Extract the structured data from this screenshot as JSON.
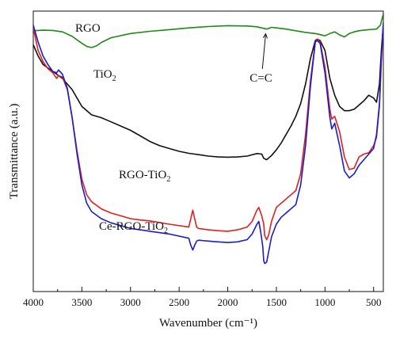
{
  "chart_data": {
    "type": "line",
    "title": "",
    "xlabel": "Wavenumber (cm⁻¹)",
    "ylabel": "Transmittance (a.u.)",
    "xlim": [
      4000,
      400
    ],
    "x_reversed": true,
    "x_ticks": [
      4000,
      3500,
      3000,
      2500,
      2000,
      1500,
      1000,
      500
    ],
    "y_ticks_shown": false,
    "y_range_note": "arbitrary units",
    "ylim": [
      0,
      100
    ],
    "grid": false,
    "legend": "inline labels",
    "series": [
      {
        "name": "RGO",
        "label_main": "RGO",
        "label_sub": "",
        "color": "#1b8a17",
        "x": [
          4000,
          3900,
          3800,
          3700,
          3600,
          3500,
          3450,
          3400,
          3350,
          3300,
          3200,
          3000,
          2800,
          2600,
          2400,
          2200,
          2000,
          1800,
          1700,
          1600,
          1550,
          1500,
          1400,
          1300,
          1200,
          1100,
          1050,
          1000,
          950,
          900,
          850,
          800,
          750,
          700,
          650,
          600,
          550,
          500,
          470,
          430,
          400
        ],
        "y": [
          93.0,
          93.2,
          93.1,
          92.6,
          91.0,
          88.5,
          87.4,
          87.0,
          87.6,
          88.8,
          90.5,
          92.0,
          92.8,
          93.4,
          94.0,
          94.5,
          94.8,
          94.7,
          94.4,
          93.6,
          94.2,
          94.0,
          93.6,
          93.0,
          92.4,
          92.0,
          91.6,
          91.2,
          92.0,
          92.6,
          91.5,
          90.8,
          92.0,
          92.6,
          93.0,
          93.2,
          93.4,
          93.5,
          93.6,
          95.0,
          99.0
        ]
      },
      {
        "name": "TiO2",
        "label_main": "TiO",
        "label_sub": "2",
        "color": "#111111",
        "x": [
          4000,
          3950,
          3900,
          3800,
          3700,
          3600,
          3500,
          3400,
          3300,
          3200,
          3100,
          3000,
          2900,
          2800,
          2700,
          2600,
          2500,
          2400,
          2300,
          2200,
          2100,
          2000,
          1900,
          1800,
          1700,
          1650,
          1630,
          1600,
          1550,
          1500,
          1450,
          1400,
          1350,
          1300,
          1250,
          1200,
          1150,
          1100,
          1080,
          1050,
          1000,
          950,
          900,
          850,
          800,
          750,
          700,
          650,
          600,
          550,
          500,
          470,
          440,
          420,
          400
        ],
        "y": [
          88.0,
          84.0,
          81.0,
          78.5,
          76.0,
          72.0,
          66.0,
          63.0,
          62.0,
          60.5,
          59.0,
          57.5,
          55.5,
          53.5,
          52.0,
          51.0,
          50.0,
          49.3,
          48.8,
          48.3,
          48.0,
          47.9,
          48.0,
          48.3,
          49.2,
          49.0,
          47.5,
          47.0,
          48.5,
          50.5,
          53.0,
          56.0,
          59.0,
          62.5,
          67.0,
          74.0,
          83.0,
          89.5,
          90.0,
          89.5,
          86.0,
          76.0,
          70.0,
          66.0,
          64.5,
          64.5,
          65.0,
          66.5,
          68.0,
          70.0,
          69.0,
          67.5,
          74.0,
          86.0,
          95.0
        ]
      },
      {
        "name": "RGO-TiO2",
        "label_main": "RGO-TiO",
        "label_sub": "2",
        "color": "#e02020",
        "x": [
          4000,
          3950,
          3900,
          3850,
          3800,
          3760,
          3740,
          3700,
          3650,
          3600,
          3550,
          3500,
          3450,
          3400,
          3300,
          3200,
          3100,
          3000,
          2900,
          2800,
          2600,
          2400,
          2380,
          2360,
          2340,
          2320,
          2300,
          2200,
          2100,
          2000,
          1900,
          1800,
          1750,
          1700,
          1680,
          1650,
          1630,
          1620,
          1600,
          1580,
          1550,
          1500,
          1400,
          1300,
          1250,
          1200,
          1150,
          1100,
          1080,
          1050,
          1000,
          950,
          930,
          900,
          850,
          800,
          750,
          700,
          650,
          600,
          550,
          500,
          470,
          440,
          420,
          400
        ],
        "y": [
          94.0,
          86.0,
          82.0,
          79.5,
          78.0,
          76.0,
          77.0,
          76.5,
          72.0,
          62.0,
          50.0,
          40.0,
          34.5,
          32.0,
          29.5,
          28.0,
          27.0,
          26.0,
          25.5,
          25.2,
          24.0,
          23.0,
          26.0,
          29.0,
          26.0,
          23.0,
          22.5,
          22.0,
          21.7,
          21.5,
          22.0,
          23.0,
          25.0,
          29.0,
          30.0,
          27.0,
          24.0,
          20.0,
          18.5,
          20.0,
          25.0,
          30.0,
          33.0,
          36.0,
          42.0,
          56.0,
          75.0,
          89.0,
          90.0,
          89.0,
          80.0,
          65.0,
          61.5,
          62.5,
          57.0,
          48.0,
          43.5,
          44.0,
          48.0,
          49.0,
          49.5,
          52.0,
          55.0,
          66.0,
          82.0,
          95.0
        ]
      },
      {
        "name": "Ce-RGO-TiO2",
        "label_main": "Ce-RGO-TiO",
        "label_sub": "2",
        "color": "#1c1cc8",
        "x": [
          4000,
          3950,
          3900,
          3850,
          3800,
          3760,
          3740,
          3700,
          3650,
          3600,
          3550,
          3500,
          3450,
          3400,
          3300,
          3200,
          3100,
          3000,
          2900,
          2800,
          2600,
          2400,
          2380,
          2360,
          2340,
          2320,
          2300,
          2200,
          2100,
          2000,
          1900,
          1800,
          1750,
          1700,
          1680,
          1660,
          1640,
          1630,
          1620,
          1600,
          1580,
          1550,
          1500,
          1450,
          1400,
          1300,
          1250,
          1200,
          1150,
          1100,
          1080,
          1050,
          1000,
          950,
          930,
          900,
          850,
          800,
          750,
          700,
          650,
          600,
          550,
          500,
          470,
          440,
          420,
          400
        ],
        "y": [
          95.0,
          89.0,
          84.0,
          81.0,
          78.5,
          78.0,
          79.0,
          77.5,
          72.5,
          62.0,
          49.0,
          38.0,
          31.5,
          28.5,
          26.0,
          24.5,
          23.5,
          22.5,
          22.0,
          21.5,
          20.5,
          19.0,
          16.5,
          14.8,
          16.5,
          18.0,
          18.3,
          18.0,
          17.7,
          17.5,
          17.7,
          18.5,
          20.5,
          24.0,
          25.0,
          21.0,
          16.0,
          11.0,
          10.0,
          10.5,
          14.0,
          19.5,
          24.0,
          26.5,
          28.0,
          31.0,
          38.0,
          52.0,
          73.0,
          89.0,
          89.5,
          88.5,
          78.0,
          62.0,
          58.0,
          60.0,
          52.0,
          43.0,
          40.5,
          42.0,
          45.0,
          47.0,
          49.0,
          51.0,
          56.0,
          67.0,
          84.0,
          96.0
        ]
      }
    ],
    "annotation": {
      "text": "C=C",
      "x": 1610,
      "y": 93.6,
      "label_x": 1660,
      "label_y": 76.0
    }
  }
}
